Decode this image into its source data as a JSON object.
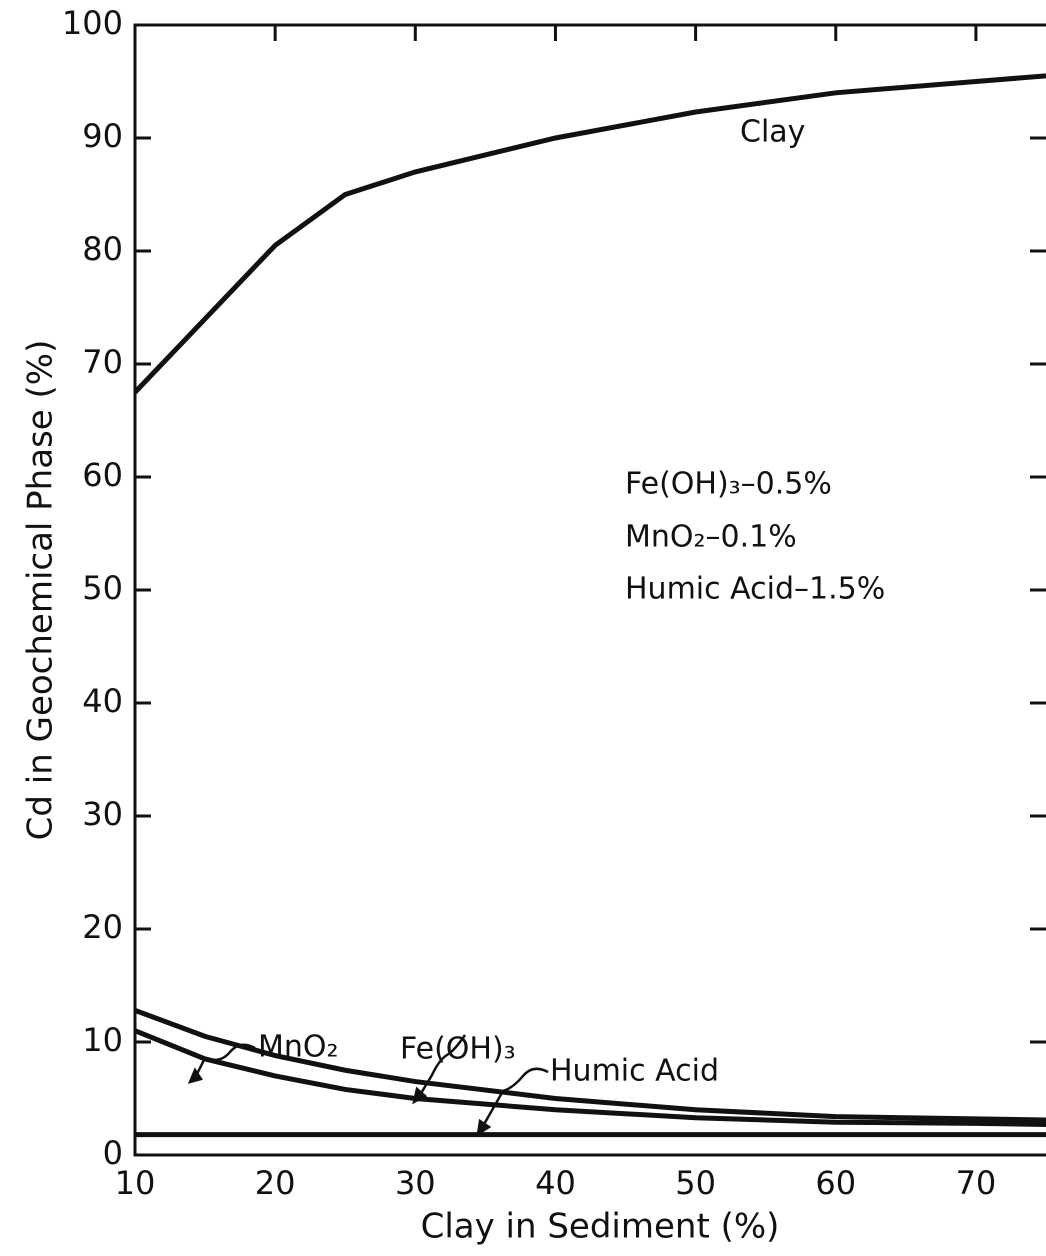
{
  "chart_data": {
    "type": "line",
    "x_label": "Clay in Sediment  (%)",
    "y_label": "Cd in Geochemical  Phase  (%)",
    "x": [
      10,
      15,
      20,
      25,
      30,
      40,
      50,
      60,
      70,
      75
    ],
    "series": [
      {
        "name": "Clay",
        "color": "#111111",
        "values": [
          67.5,
          74,
          80.5,
          85,
          87,
          90,
          92.3,
          94,
          95,
          95.5
        ]
      },
      {
        "name": "Fe(OH)₃",
        "color": "#111111",
        "values": [
          12.8,
          10.5,
          8.8,
          7.5,
          6.5,
          5,
          4,
          3.4,
          3.2,
          3.1
        ]
      },
      {
        "name": "MnO₂",
        "color": "#111111",
        "values": [
          11,
          8.5,
          7,
          5.8,
          5,
          4,
          3.3,
          2.9,
          2.8,
          2.7
        ]
      },
      {
        "name": "Humic Acid",
        "color": "#111111",
        "values": [
          1.8,
          1.8,
          1.8,
          1.8,
          1.8,
          1.8,
          1.8,
          1.8,
          1.8,
          1.8
        ]
      }
    ],
    "annotations": [
      "Fe(OH)₃–0.5%",
      "MnO₂–0.1%",
      "Humic Acid–1.5%"
    ],
    "xlim": [
      10,
      75
    ],
    "xticks": [
      10,
      20,
      30,
      40,
      50,
      60,
      70
    ],
    "ylim": [
      0,
      100
    ],
    "yticks": [
      0,
      10,
      20,
      30,
      40,
      50,
      60,
      70,
      80,
      90,
      100
    ]
  }
}
